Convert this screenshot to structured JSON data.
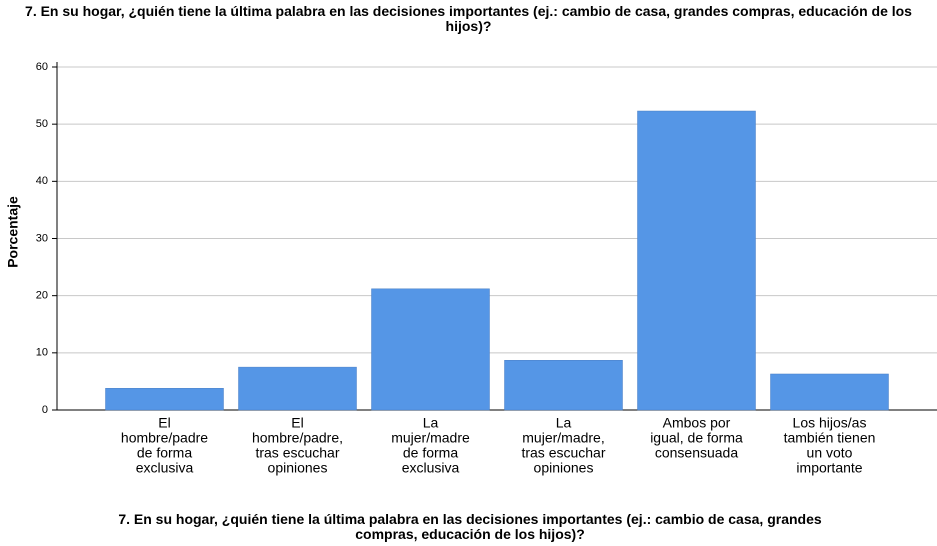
{
  "chart_data": {
    "type": "bar",
    "title": "7. En su hogar, ¿quién tiene la última palabra en las decisiones importantes (ej.: cambio de casa, grandes compras, educación de los hijos)?",
    "x_label": "7. En su hogar, ¿quién tiene la última palabra en las decisiones importantes (ej.: cambio de casa, grandes compras, educación de los hijos)?",
    "y_label": "Porcentaje",
    "categories": [
      [
        "El",
        "hombre/padre",
        "de forma",
        "exclusiva"
      ],
      [
        "El",
        "hombre/padre,",
        "tras escuchar",
        "opiniones"
      ],
      [
        "La",
        "mujer/madre",
        "de forma",
        "exclusiva"
      ],
      [
        "La",
        "mujer/madre,",
        "tras escuchar",
        "opiniones"
      ],
      [
        "Ambos por",
        "igual, de forma",
        "consensuada"
      ],
      [
        "Los hijos/as",
        "también tienen",
        "un voto",
        "importante"
      ]
    ],
    "values": [
      3.8,
      7.5,
      21.2,
      8.7,
      52.3,
      6.3
    ],
    "color": "#5596e6",
    "ylim": [
      0,
      60
    ],
    "yticks": [
      0,
      10,
      20,
      30,
      40,
      50,
      60
    ],
    "grid": true
  }
}
